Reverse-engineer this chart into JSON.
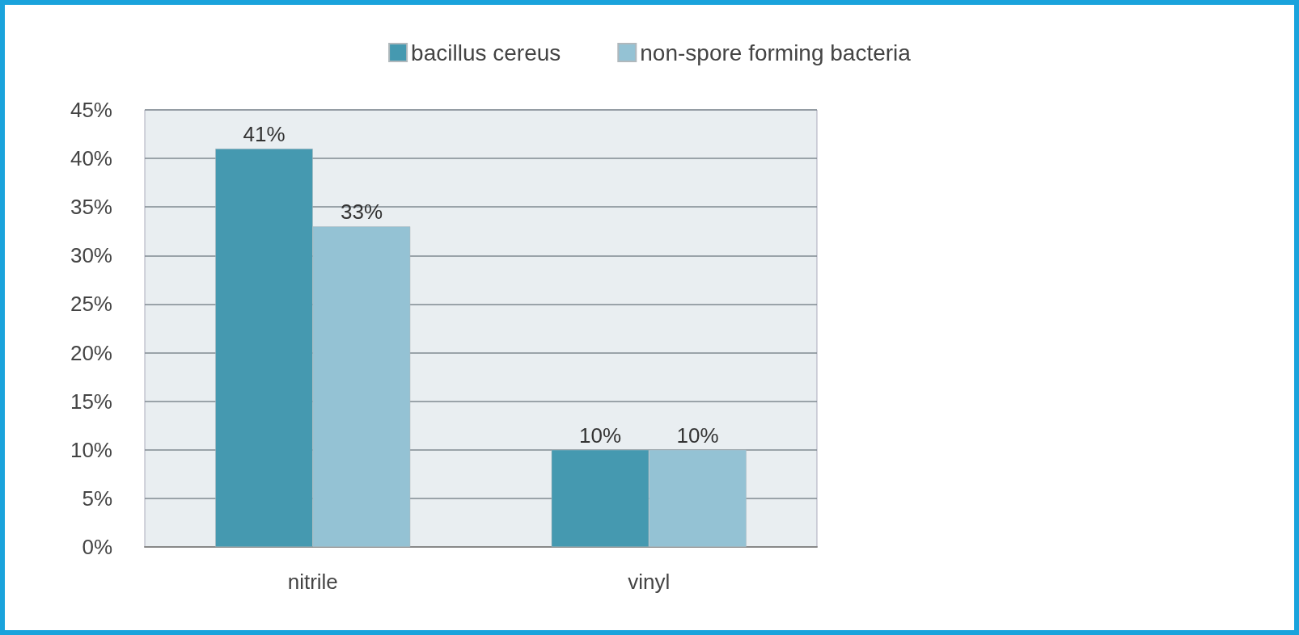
{
  "chart_data": {
    "type": "bar",
    "categories": [
      "nitrile",
      "vinyl"
    ],
    "series": [
      {
        "name": "bacillus cereus",
        "color": "#4599b0",
        "values": [
          41,
          10
        ],
        "value_labels": [
          "41%",
          "10%"
        ]
      },
      {
        "name": "non-spore forming bacteria",
        "color": "#94c2d4",
        "values": [
          33,
          10
        ],
        "value_labels": [
          "33%",
          "10%"
        ]
      }
    ],
    "ylim": [
      0,
      45
    ],
    "yticks": [
      {
        "value": 0,
        "label": "0%"
      },
      {
        "value": 5,
        "label": "5%"
      },
      {
        "value": 10,
        "label": "10%"
      },
      {
        "value": 15,
        "label": "15%"
      },
      {
        "value": 20,
        "label": "20%"
      },
      {
        "value": 25,
        "label": "25%"
      },
      {
        "value": 30,
        "label": "30%"
      },
      {
        "value": 35,
        "label": "35%"
      },
      {
        "value": 40,
        "label": "40%"
      },
      {
        "value": 45,
        "label": "45%"
      }
    ],
    "grid": "y",
    "legend": "top"
  }
}
